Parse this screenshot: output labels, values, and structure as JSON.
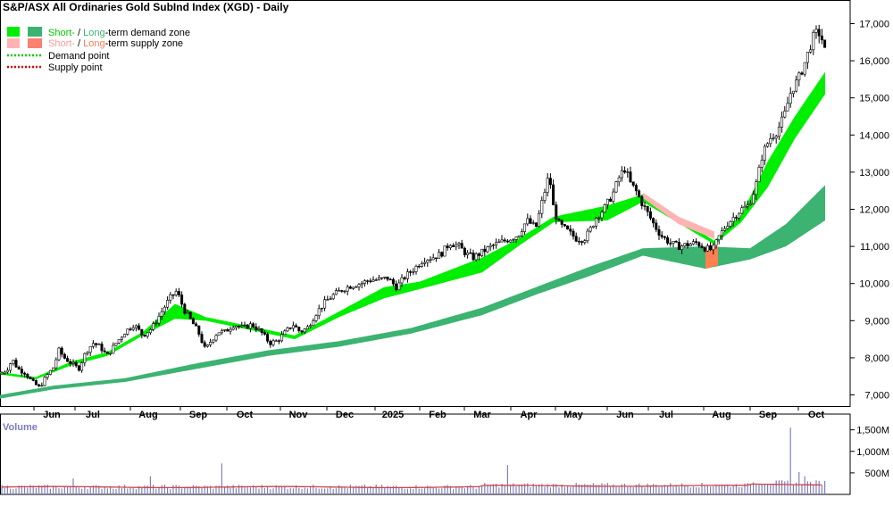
{
  "chart": {
    "title": "S&P/ASX All Ordinaries Gold SubInd Index (XGD) - Daily",
    "volume_label": "Volume",
    "legend": {
      "demand_zone": {
        "short": "Short-",
        "sep": " / ",
        "long": "Long",
        "rest": "-term demand zone"
      },
      "supply_zone": {
        "short": "Short-",
        "sep": " / ",
        "long": "Long",
        "rest": "-term supply zone"
      },
      "demand_point": "Demand point",
      "supply_point": "Supply point"
    }
  },
  "colors": {
    "short_demand": "#00ee00",
    "long_demand": "#3cb371",
    "short_supply": "#ffb3b3",
    "long_supply": "#ff7f50",
    "demand_point": "#00cc00",
    "supply_point": "#dd0000",
    "volume_bar": "#8080c0",
    "volume_ma": "#cc4444"
  },
  "chart_data": {
    "type": "candlestick",
    "title": "S&P/ASX All Ordinaries Gold SubInd Index (XGD) - Daily",
    "y_ticks": [
      "7,000",
      "8,000",
      "9,000",
      "10,000",
      "11,000",
      "12,000",
      "13,000",
      "14,000",
      "15,000",
      "16,000",
      "17,000"
    ],
    "y_tick_values": [
      7000,
      8000,
      9000,
      10000,
      11000,
      12000,
      13000,
      14000,
      15000,
      16000,
      17000
    ],
    "ylim": [
      6700,
      17300
    ],
    "x_ticks": [
      "Jun",
      "Jul",
      "Aug",
      "Sep",
      "Oct",
      "Nov",
      "Dec",
      "2025",
      "Feb",
      "Mar",
      "Apr",
      "May",
      "Jun",
      "Jul",
      "Aug",
      "Sep",
      "Oct"
    ],
    "price_keypoints": [
      [
        0,
        7550
      ],
      [
        8,
        7700
      ],
      [
        14,
        7950
      ],
      [
        20,
        7700
      ],
      [
        28,
        7600
      ],
      [
        36,
        7350
      ],
      [
        44,
        7200
      ],
      [
        52,
        7500
      ],
      [
        60,
        7750
      ],
      [
        66,
        8200
      ],
      [
        72,
        8000
      ],
      [
        80,
        7850
      ],
      [
        88,
        7700
      ],
      [
        96,
        8150
      ],
      [
        104,
        8400
      ],
      [
        112,
        8300
      ],
      [
        120,
        8050
      ],
      [
        130,
        8400
      ],
      [
        140,
        8700
      ],
      [
        150,
        8900
      ],
      [
        160,
        8600
      ],
      [
        170,
        8800
      ],
      [
        180,
        9200
      ],
      [
        190,
        9600
      ],
      [
        198,
        9800
      ],
      [
        206,
        9300
      ],
      [
        214,
        9000
      ],
      [
        222,
        8700
      ],
      [
        230,
        8200
      ],
      [
        236,
        8450
      ],
      [
        244,
        8700
      ],
      [
        252,
        8700
      ],
      [
        262,
        8900
      ],
      [
        272,
        8800
      ],
      [
        282,
        8900
      ],
      [
        292,
        8700
      ],
      [
        302,
        8400
      ],
      [
        310,
        8450
      ],
      [
        320,
        8700
      ],
      [
        328,
        8900
      ],
      [
        336,
        8700
      ],
      [
        344,
        8800
      ],
      [
        354,
        9200
      ],
      [
        364,
        9500
      ],
      [
        374,
        9700
      ],
      [
        384,
        9850
      ],
      [
        394,
        9950
      ],
      [
        404,
        10000
      ],
      [
        414,
        10100
      ],
      [
        424,
        10100
      ],
      [
        434,
        10150
      ],
      [
        444,
        9900
      ],
      [
        454,
        10200
      ],
      [
        464,
        10400
      ],
      [
        474,
        10650
      ],
      [
        484,
        10700
      ],
      [
        494,
        10800
      ],
      [
        504,
        11100
      ],
      [
        514,
        11000
      ],
      [
        522,
        10800
      ],
      [
        530,
        10700
      ],
      [
        540,
        10850
      ],
      [
        550,
        11000
      ],
      [
        560,
        11100
      ],
      [
        570,
        11200
      ],
      [
        580,
        11300
      ],
      [
        590,
        11700
      ],
      [
        600,
        11500
      ],
      [
        608,
        12300
      ],
      [
        615,
        12950
      ],
      [
        620,
        12000
      ],
      [
        626,
        11600
      ],
      [
        636,
        11400
      ],
      [
        646,
        11200
      ],
      [
        654,
        11200
      ],
      [
        660,
        11400
      ],
      [
        668,
        11800
      ],
      [
        676,
        12000
      ],
      [
        686,
        12400
      ],
      [
        694,
        12900
      ],
      [
        700,
        13100
      ],
      [
        706,
        12700
      ],
      [
        712,
        12500
      ],
      [
        718,
        12200
      ],
      [
        724,
        11950
      ],
      [
        732,
        11600
      ],
      [
        740,
        11300
      ],
      [
        750,
        11100
      ],
      [
        760,
        11000
      ],
      [
        770,
        11050
      ],
      [
        780,
        11100
      ],
      [
        790,
        10950
      ],
      [
        798,
        10900
      ],
      [
        806,
        11300
      ],
      [
        814,
        11600
      ],
      [
        822,
        11800
      ],
      [
        830,
        12000
      ],
      [
        838,
        12100
      ],
      [
        846,
        12600
      ],
      [
        854,
        13500
      ],
      [
        862,
        13900
      ],
      [
        870,
        14100
      ],
      [
        878,
        14500
      ],
      [
        886,
        15200
      ],
      [
        894,
        15500
      ],
      [
        902,
        16000
      ],
      [
        910,
        16600
      ],
      [
        916,
        16800
      ],
      [
        922,
        16500
      ],
      [
        924,
        16200
      ]
    ],
    "short_demand_zone": [
      [
        0,
        7550,
        7620
      ],
      [
        40,
        7420,
        7480
      ],
      [
        80,
        7800,
        7900
      ],
      [
        120,
        8050,
        8150
      ],
      [
        160,
        8600,
        8700
      ],
      [
        196,
        9050,
        9450
      ],
      [
        230,
        9000,
        9100
      ],
      [
        330,
        8500,
        8600
      ],
      [
        380,
        9100,
        9250
      ],
      [
        430,
        9600,
        9900
      ],
      [
        470,
        9850,
        10050
      ],
      [
        540,
        10300,
        10700
      ],
      [
        580,
        11000,
        11200
      ],
      [
        620,
        11650,
        11800
      ],
      [
        680,
        11700,
        12100
      ],
      [
        720,
        12200,
        12400
      ],
      [
        800,
        11050,
        11150
      ],
      [
        830,
        11650,
        11850
      ],
      [
        860,
        12600,
        13300
      ],
      [
        890,
        13900,
        14500
      ],
      [
        924,
        15100,
        15700
      ]
    ],
    "long_demand_zone": [
      [
        0,
        6900,
        7000
      ],
      [
        60,
        7150,
        7250
      ],
      [
        140,
        7350,
        7450
      ],
      [
        220,
        7700,
        7850
      ],
      [
        300,
        8050,
        8200
      ],
      [
        380,
        8300,
        8450
      ],
      [
        460,
        8650,
        8800
      ],
      [
        540,
        9150,
        9350
      ],
      [
        600,
        9700,
        9900
      ],
      [
        660,
        10200,
        10450
      ],
      [
        720,
        10750,
        10950
      ],
      [
        790,
        10400,
        11000
      ],
      [
        840,
        10650,
        10950
      ],
      [
        880,
        11000,
        11600
      ],
      [
        924,
        11700,
        12650
      ]
    ],
    "short_supply_zone": [
      [
        720,
        12300,
        12450
      ],
      [
        760,
        11600,
        11800
      ],
      [
        800,
        11200,
        11400
      ]
    ],
    "long_supply_zone": [
      [
        790,
        10400,
        11000
      ],
      [
        805,
        10500,
        11000
      ]
    ],
    "volume_ticks": [
      "500M",
      "1,000M",
      "1,500M"
    ],
    "volume_tick_values": [
      500,
      1000,
      1500
    ],
    "volume_ylim": [
      0,
      1700
    ],
    "volume_spikes": [
      [
        80,
        370
      ],
      [
        165,
        420
      ],
      [
        246,
        720
      ],
      [
        566,
        680
      ],
      [
        884,
        1550
      ],
      [
        892,
        520
      ],
      [
        900,
        420
      ]
    ],
    "volume_ma": 170
  }
}
